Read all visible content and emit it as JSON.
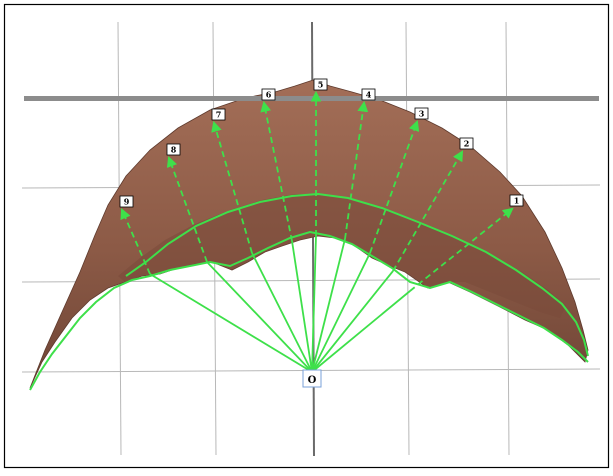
{
  "origin_label": "O",
  "rays": [
    {
      "label": "1"
    },
    {
      "label": "2"
    },
    {
      "label": "3"
    },
    {
      "label": "4"
    },
    {
      "label": "5"
    },
    {
      "label": "6"
    },
    {
      "label": "7"
    },
    {
      "label": "8"
    },
    {
      "label": "9"
    }
  ],
  "colors": {
    "surface": "#93604b",
    "surface_dark": "#6e4335",
    "trace": "#3ee04a",
    "grid": "#b8b8b8",
    "axis": "#6a6a6a",
    "frame": "#000000"
  }
}
